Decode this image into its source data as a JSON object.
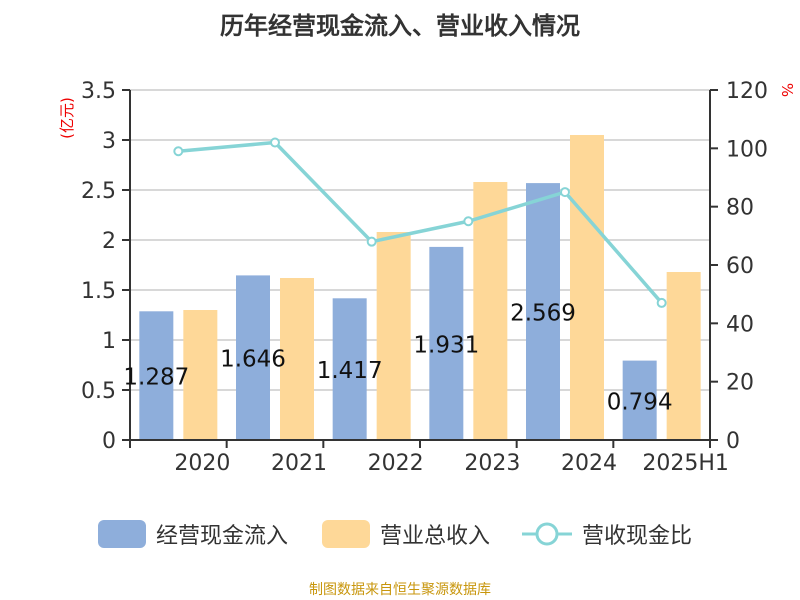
{
  "chart_data": {
    "type": "bar",
    "title": "历年经营现金流入、营业收入情况",
    "categories": [
      "2020",
      "2021",
      "2022",
      "2023",
      "2024",
      "2025H1"
    ],
    "series": [
      {
        "name": "经营现金流入",
        "type": "bar",
        "axis": "left",
        "color": "#8eaedb",
        "values": [
          1.287,
          1.646,
          1.417,
          1.931,
          2.569,
          0.794
        ],
        "labels": [
          "1.287",
          "1.646",
          "1.417",
          "1.931",
          "2.569",
          "0.794"
        ]
      },
      {
        "name": "营业总收入",
        "type": "bar",
        "axis": "left",
        "color": "#fed898",
        "values": [
          1.3,
          1.62,
          2.08,
          2.58,
          3.05,
          1.68
        ]
      },
      {
        "name": "营收现金比",
        "type": "line",
        "axis": "right",
        "color": "#86d4d6",
        "values": [
          99,
          102,
          68,
          75,
          85,
          47
        ]
      }
    ],
    "ylabel_left": "(亿元)",
    "ylabel_right": "%",
    "ylim_left": [
      0,
      3.5
    ],
    "yticks_left": [
      "0",
      "0.5",
      "1",
      "1.5",
      "2",
      "2.5",
      "3",
      "3.5"
    ],
    "ylim_right": [
      0,
      120
    ],
    "yticks_right": [
      "0",
      "20",
      "40",
      "60",
      "80",
      "100",
      "120"
    ],
    "grid": true,
    "legend_position": "bottom"
  },
  "source": "制图数据来自恒生聚源数据库"
}
